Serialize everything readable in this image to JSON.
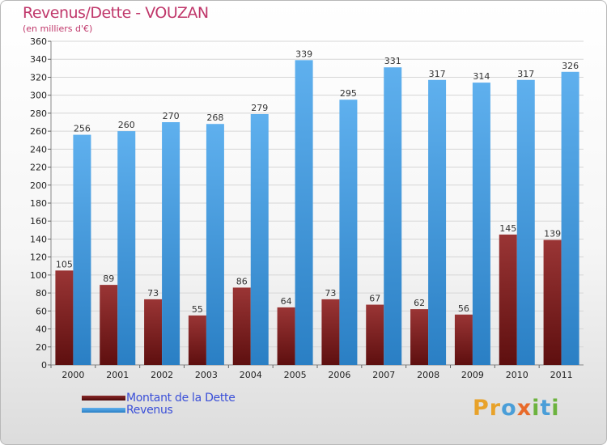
{
  "title": "Revenus/Dette - VOUZAN",
  "subtitle": "(en milliers d'€)",
  "logo_text": "Proxiti",
  "colors": {
    "dette": "#7a1f1f",
    "revenus": "#3f97dc",
    "title": "#c0386b",
    "legend_text": "#3a4fd8"
  },
  "chart_data": {
    "type": "bar",
    "title": "Revenus/Dette - VOUZAN",
    "subtitle": "(en milliers d'€)",
    "categories": [
      "2000",
      "2001",
      "2002",
      "2003",
      "2004",
      "2005",
      "2006",
      "2007",
      "2008",
      "2009",
      "2010",
      "2011"
    ],
    "series": [
      {
        "name": "Montant de la Dette",
        "values": [
          105,
          89,
          73,
          55,
          86,
          64,
          73,
          67,
          62,
          56,
          145,
          139
        ]
      },
      {
        "name": "Revenus",
        "values": [
          256,
          260,
          270,
          268,
          279,
          339,
          295,
          331,
          317,
          314,
          317,
          326
        ]
      }
    ],
    "ylim": [
      0,
      360
    ],
    "yticks": [
      0,
      20,
      40,
      60,
      80,
      100,
      120,
      140,
      160,
      180,
      200,
      220,
      240,
      260,
      280,
      300,
      320,
      340,
      360
    ],
    "grid": true,
    "legend": "bottom-left"
  }
}
